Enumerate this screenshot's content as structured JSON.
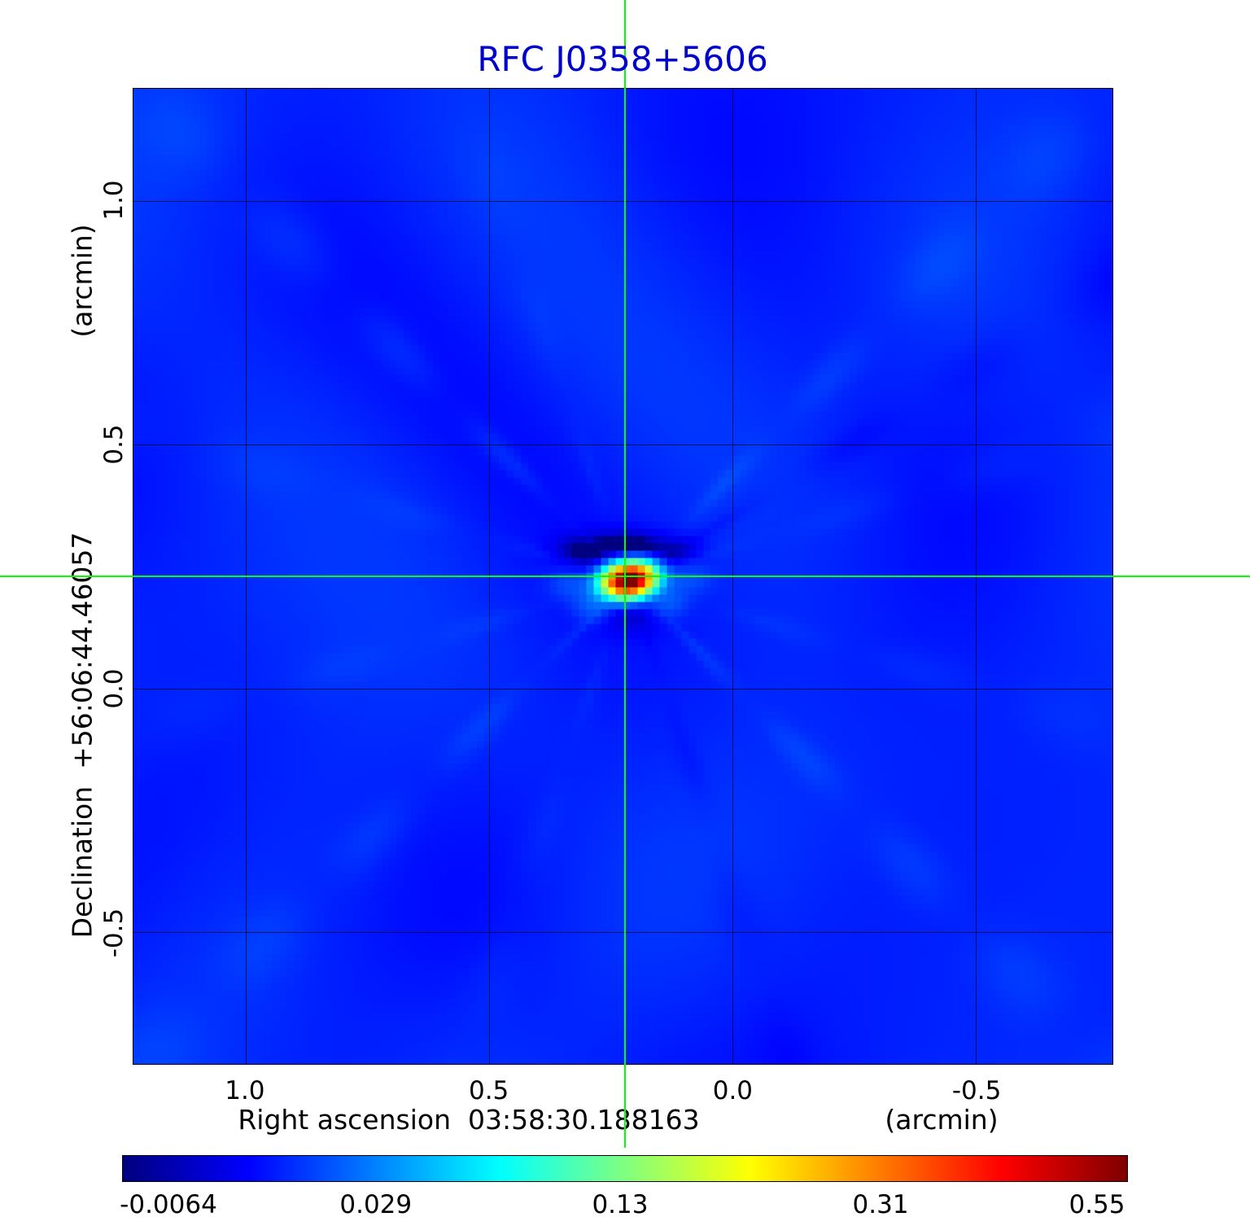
{
  "title": "RFC J0358+5606",
  "colors": {
    "title_blue": "#0000cd",
    "crosshair_green": "#00ff00",
    "grid_black": "#000000",
    "background_white": "#ffffff"
  },
  "x_axis": {
    "label": "Right ascension  03:58:30.188163",
    "unit": "(arcmin)",
    "ticks": [
      "1.0",
      "0.5",
      "0.0",
      "-0.5"
    ]
  },
  "y_axis": {
    "label": "Declination  +56:06:44.46057",
    "unit": "(arcmin)",
    "ticks": [
      "1.0",
      "0.5",
      "0.0",
      "-0.5"
    ]
  },
  "colorbar": {
    "colormap": "jet",
    "ticks": [
      "-0.0064",
      "0.029",
      "0.13",
      "0.31",
      "0.55"
    ]
  },
  "chart_data": {
    "type": "heatmap",
    "title": "RFC J0358+5606",
    "xlabel": "Right ascension 03:58:30.188163 (arcmin)",
    "ylabel": "Declination +56:06:44.46057 (arcmin)",
    "x_tick_values": [
      1.0,
      0.5,
      0.0,
      -0.5
    ],
    "y_tick_values": [
      1.0,
      0.5,
      0.0,
      -0.5
    ],
    "x_range_arcmin": [
      1.23,
      -0.78
    ],
    "y_range_arcmin": [
      -0.77,
      1.23
    ],
    "colormap": "jet",
    "value_scale": "sqrt",
    "value_min": -0.0064,
    "value_max": 0.55,
    "colorbar_tick_values": [
      -0.0064,
      0.029,
      0.13,
      0.31,
      0.55
    ],
    "grid": true,
    "source": {
      "name": "RFC J0358+5606",
      "ra": "03:58:30.188163",
      "dec": "+56:06:44.46057"
    },
    "peak": {
      "value": 0.55,
      "x_offset_arcmin": 0.22,
      "y_offset_arcmin": 0.23
    },
    "crosshair": {
      "x_arcmin": 0.22,
      "y_arcmin": 0.23
    }
  }
}
